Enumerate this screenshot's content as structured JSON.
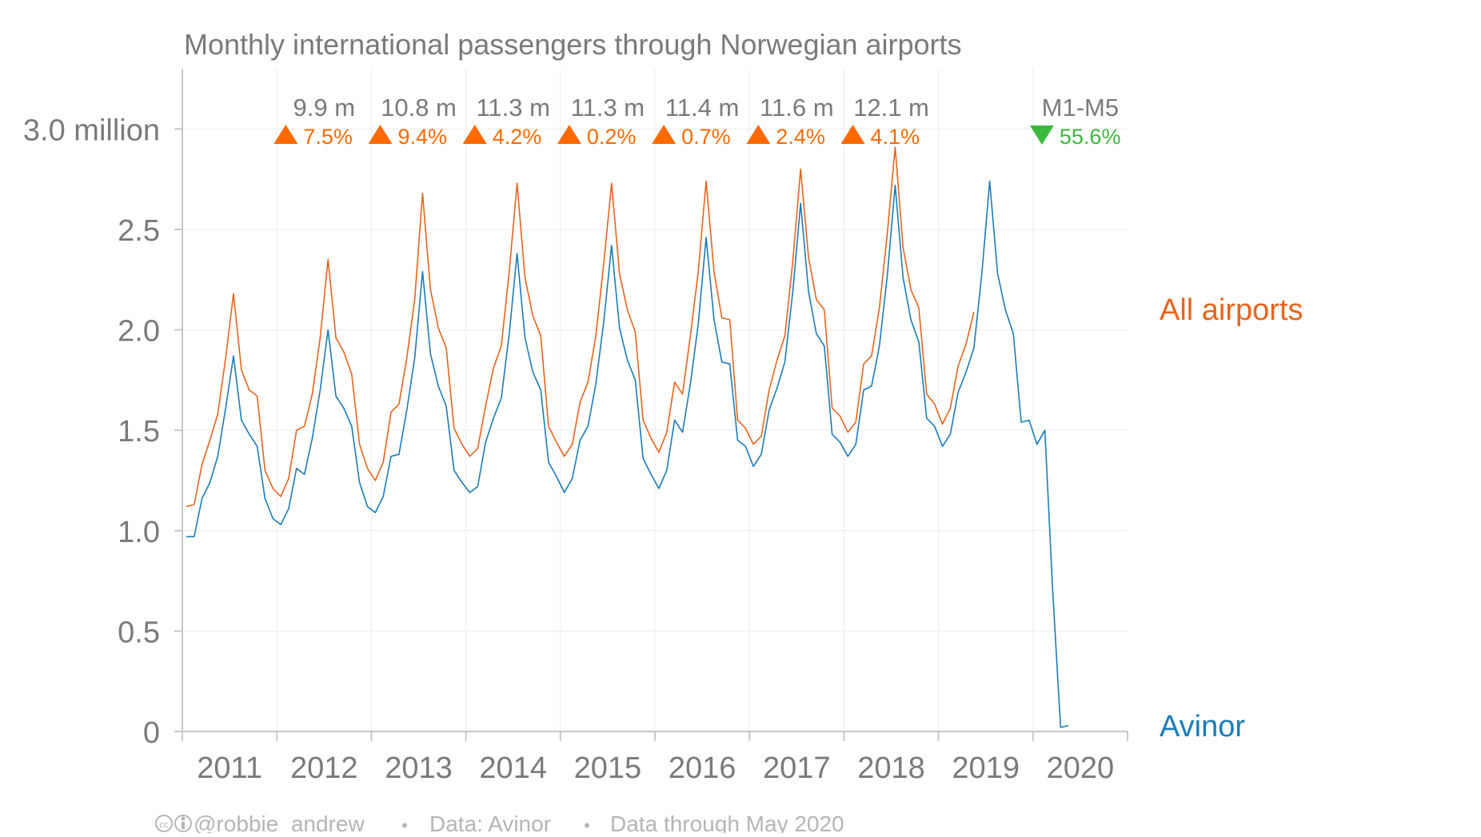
{
  "colors": {
    "all_airports": "#e8641c",
    "avinor": "#1a7cb8",
    "up": "#ff6a00",
    "down": "#3cb83c",
    "text": "#7a7a7a",
    "footer": "#b5b5b5",
    "grid": "#ececec",
    "axis": "#c8c8c8"
  },
  "chart_data": {
    "type": "line",
    "title": "Monthly international passengers through Norwegian airports",
    "ylim": [
      0,
      3.3
    ],
    "y_ticks": [
      0,
      0.5,
      1.0,
      1.5,
      2.0,
      2.5,
      3.0
    ],
    "y_tick_labels": [
      "0",
      "0.5",
      "1.0",
      "1.5",
      "2.0",
      "2.5",
      "3.0 million"
    ],
    "x_start": 2011,
    "x_end": 2021,
    "x_tick_labels": [
      "2011",
      "2012",
      "2013",
      "2014",
      "2015",
      "2016",
      "2017",
      "2018",
      "2019",
      "2020"
    ],
    "series": [
      {
        "name": "All airports",
        "start": "2011-01",
        "values": [
          1.12,
          1.13,
          1.33,
          1.45,
          1.58,
          1.86,
          2.18,
          1.8,
          1.7,
          1.67,
          1.3,
          1.21,
          1.17,
          1.26,
          1.5,
          1.52,
          1.68,
          1.96,
          2.35,
          1.96,
          1.89,
          1.78,
          1.43,
          1.31,
          1.25,
          1.34,
          1.59,
          1.63,
          1.86,
          2.15,
          2.68,
          2.2,
          2.01,
          1.91,
          1.51,
          1.43,
          1.37,
          1.41,
          1.62,
          1.81,
          1.92,
          2.29,
          2.73,
          2.26,
          2.07,
          1.97,
          1.52,
          1.44,
          1.37,
          1.43,
          1.64,
          1.74,
          1.97,
          2.33,
          2.73,
          2.28,
          2.1,
          1.99,
          1.55,
          1.46,
          1.39,
          1.49,
          1.74,
          1.68,
          1.97,
          2.29,
          2.74,
          2.29,
          2.06,
          2.05,
          1.55,
          1.51,
          1.43,
          1.47,
          1.7,
          1.85,
          1.97,
          2.34,
          2.8,
          2.36,
          2.15,
          2.1,
          1.61,
          1.57,
          1.49,
          1.54,
          1.83,
          1.87,
          2.11,
          2.48,
          2.91,
          2.41,
          2.2,
          2.11,
          1.68,
          1.63,
          1.53,
          1.61,
          1.82,
          1.93,
          2.09
        ]
      },
      {
        "name": "Avinor",
        "start": "2011-01",
        "values": [
          0.97,
          0.97,
          1.16,
          1.24,
          1.37,
          1.61,
          1.87,
          1.55,
          1.48,
          1.42,
          1.16,
          1.06,
          1.03,
          1.11,
          1.31,
          1.28,
          1.46,
          1.7,
          2.0,
          1.67,
          1.61,
          1.52,
          1.24,
          1.12,
          1.09,
          1.17,
          1.37,
          1.38,
          1.6,
          1.86,
          2.29,
          1.88,
          1.72,
          1.62,
          1.3,
          1.24,
          1.19,
          1.22,
          1.44,
          1.56,
          1.66,
          1.98,
          2.38,
          1.96,
          1.79,
          1.7,
          1.34,
          1.27,
          1.19,
          1.26,
          1.45,
          1.52,
          1.73,
          2.04,
          2.42,
          2.01,
          1.85,
          1.75,
          1.36,
          1.28,
          1.21,
          1.3,
          1.55,
          1.49,
          1.73,
          2.03,
          2.46,
          2.05,
          1.84,
          1.83,
          1.45,
          1.42,
          1.32,
          1.38,
          1.6,
          1.71,
          1.84,
          2.19,
          2.63,
          2.19,
          1.98,
          1.92,
          1.48,
          1.44,
          1.37,
          1.43,
          1.7,
          1.72,
          1.92,
          2.27,
          2.72,
          2.26,
          2.05,
          1.94,
          1.56,
          1.52,
          1.42,
          1.48,
          1.69,
          1.79,
          1.91,
          2.28,
          2.74,
          2.28,
          2.1,
          1.98,
          1.54,
          1.55,
          1.43,
          1.5,
          0.7,
          0.02,
          0.03
        ]
      }
    ],
    "series_labels": {
      "all_airports": "All airports",
      "avinor": "Avinor"
    },
    "annotations": [
      {
        "year": 2012,
        "total": "9.9 m",
        "change": "7.5%",
        "direction": "up"
      },
      {
        "year": 2013,
        "total": "10.8 m",
        "change": "9.4%",
        "direction": "up"
      },
      {
        "year": 2014,
        "total": "11.3 m",
        "change": "4.2%",
        "direction": "up"
      },
      {
        "year": 2015,
        "total": "11.3 m",
        "change": "0.2%",
        "direction": "up"
      },
      {
        "year": 2016,
        "total": "11.4 m",
        "change": "0.7%",
        "direction": "up"
      },
      {
        "year": 2017,
        "total": "11.6 m",
        "change": "2.4%",
        "direction": "up"
      },
      {
        "year": 2018,
        "total": "12.1 m",
        "change": "4.1%",
        "direction": "up"
      },
      {
        "year": 2020,
        "total": "M1-M5",
        "change": "55.6%",
        "direction": "down"
      }
    ],
    "grid": true
  },
  "footer": {
    "author": "@robbie_andrew",
    "source": "Data: Avinor",
    "note": "Data through May 2020",
    "separator": "•",
    "license_icon": "cc-by-icon"
  }
}
